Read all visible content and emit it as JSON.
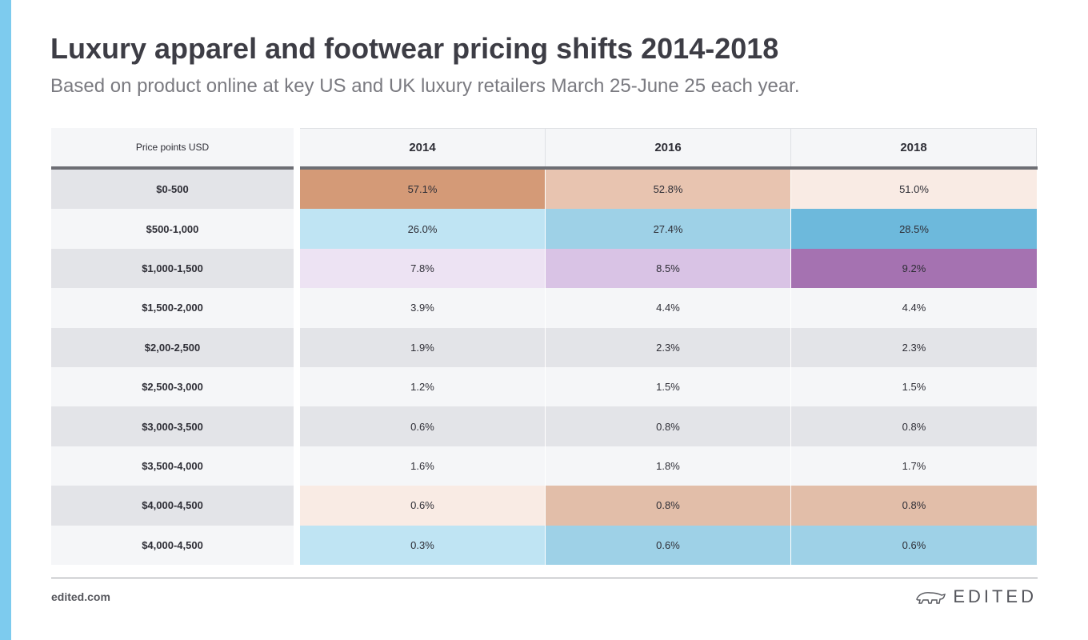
{
  "title": "Luxury apparel and footwear pricing shifts 2014-2018",
  "subtitle": "Based on product online at key US and UK luxury retailers March 25-June 25 each year.",
  "footer": {
    "site": "edited.com",
    "brand": "EDITED",
    "logo_icon": "polar-bear-icon"
  },
  "colors": {
    "accent": "#7dcbee",
    "header_bg": "#f5f6f8",
    "divider": "#6d6e74"
  },
  "chart_data": {
    "type": "table",
    "row_header_label": "Price points USD",
    "columns": [
      "2014",
      "2016",
      "2018"
    ],
    "rows": [
      {
        "label": "$0-500",
        "values": [
          "57.1%",
          "52.8%",
          "51.0%"
        ],
        "colors": [
          "#d49a77",
          "#e8c4b0",
          "#f9ebe4"
        ]
      },
      {
        "label": "$500-1,000",
        "values": [
          "26.0%",
          "27.4%",
          "28.5%"
        ],
        "colors": [
          "#bfe4f3",
          "#9ed1e7",
          "#6db9dc"
        ]
      },
      {
        "label": "$1,000-1,500",
        "values": [
          "7.8%",
          "8.5%",
          "9.2%"
        ],
        "colors": [
          "#ede3f3",
          "#d9c3e5",
          "#a572b1"
        ]
      },
      {
        "label": "$1,500-2,000",
        "values": [
          "3.9%",
          "4.4%",
          "4.4%"
        ],
        "colors": [
          "#f5f6f8",
          "#f5f6f8",
          "#f5f6f8"
        ]
      },
      {
        "label": "$2,00-2,500",
        "values": [
          "1.9%",
          "2.3%",
          "2.3%"
        ],
        "colors": [
          "#e3e4e8",
          "#e3e4e8",
          "#e3e4e8"
        ]
      },
      {
        "label": "$2,500-3,000",
        "values": [
          "1.2%",
          "1.5%",
          "1.5%"
        ],
        "colors": [
          "#f5f6f8",
          "#f5f6f8",
          "#f5f6f8"
        ]
      },
      {
        "label": "$3,000-3,500",
        "values": [
          "0.6%",
          "0.8%",
          "0.8%"
        ],
        "colors": [
          "#e3e4e8",
          "#e3e4e8",
          "#e3e4e8"
        ]
      },
      {
        "label": "$3,500-4,000",
        "values": [
          "1.6%",
          "1.8%",
          "1.7%"
        ],
        "colors": [
          "#f5f6f8",
          "#f5f6f8",
          "#f5f6f8"
        ]
      },
      {
        "label": "$4,000-4,500",
        "values": [
          "0.6%",
          "0.8%",
          "0.8%"
        ],
        "colors": [
          "#f9ebe4",
          "#e2bea9",
          "#e2bea9"
        ]
      },
      {
        "label": "$4,000-4,500",
        "values": [
          "0.3%",
          "0.6%",
          "0.6%"
        ],
        "colors": [
          "#bfe4f3",
          "#9ed1e7",
          "#9ed1e7"
        ]
      }
    ]
  }
}
